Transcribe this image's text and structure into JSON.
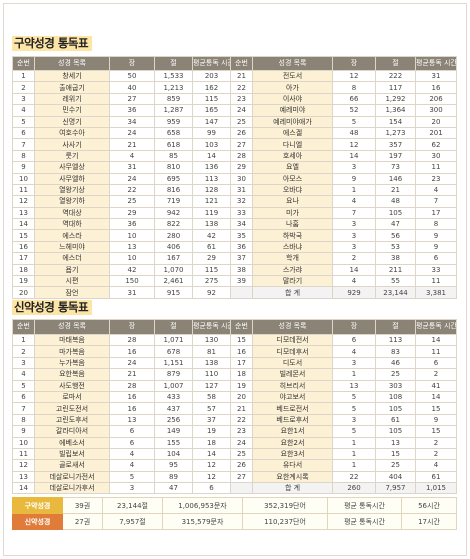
{
  "ot": {
    "title": "구약성경 통독표",
    "headers": [
      "순번",
      "성경 목록",
      "장",
      "절",
      "평균통독 시간/분",
      "순번",
      "성경 목록",
      "장",
      "절",
      "평균통독 시간/분"
    ],
    "rows": [
      [
        1,
        "창세기",
        50,
        "1,533",
        203,
        21,
        "전도서",
        12,
        222,
        31
      ],
      [
        2,
        "출애굽기",
        40,
        "1,213",
        162,
        22,
        "아가",
        8,
        117,
        16
      ],
      [
        3,
        "레위기",
        27,
        859,
        115,
        23,
        "이사야",
        66,
        "1,292",
        206
      ],
      [
        4,
        "민수기",
        36,
        "1,287",
        165,
        24,
        "예레미야",
        52,
        "1,364",
        300
      ],
      [
        5,
        "신명기",
        34,
        959,
        147,
        25,
        "예레미야애가",
        5,
        154,
        20
      ],
      [
        6,
        "여호수아",
        24,
        658,
        99,
        26,
        "에스겔",
        48,
        "1,273",
        201
      ],
      [
        7,
        "사사기",
        21,
        618,
        103,
        27,
        "다니엘",
        12,
        357,
        62
      ],
      [
        8,
        "룻기",
        4,
        85,
        14,
        28,
        "호세아",
        14,
        197,
        30
      ],
      [
        9,
        "사무엘상",
        31,
        810,
        136,
        29,
        "요엘",
        3,
        73,
        11
      ],
      [
        10,
        "사무엘하",
        24,
        695,
        113,
        30,
        "아모스",
        9,
        146,
        23
      ],
      [
        11,
        "열왕기상",
        22,
        816,
        128,
        31,
        "오바댜",
        1,
        21,
        4
      ],
      [
        12,
        "열왕기하",
        25,
        719,
        121,
        32,
        "요나",
        4,
        48,
        7
      ],
      [
        13,
        "역대상",
        29,
        942,
        119,
        33,
        "미가",
        7,
        105,
        17
      ],
      [
        14,
        "역대하",
        36,
        822,
        138,
        34,
        "나훔",
        3,
        47,
        8
      ],
      [
        15,
        "에스라",
        10,
        280,
        42,
        35,
        "하박국",
        3,
        56,
        9
      ],
      [
        16,
        "느헤미야",
        13,
        406,
        61,
        36,
        "스바냐",
        3,
        53,
        9
      ],
      [
        17,
        "에스더",
        10,
        167,
        29,
        37,
        "학개",
        2,
        38,
        6
      ],
      [
        18,
        "욥기",
        42,
        "1,070",
        115,
        38,
        "스가랴",
        14,
        211,
        33
      ],
      [
        19,
        "시편",
        150,
        "2,461",
        275,
        39,
        "말라기",
        4,
        55,
        11
      ],
      [
        20,
        "잠언",
        31,
        915,
        92,
        "",
        "합   계",
        929,
        "23,144",
        "3,381"
      ]
    ]
  },
  "nt": {
    "title": "신약성경 통독표",
    "headers": [
      "순번",
      "성경 목록",
      "장",
      "절",
      "평균통독 시간/분",
      "순번",
      "성경 목록",
      "장",
      "절",
      "평균통독 시간/분"
    ],
    "rows": [
      [
        1,
        "마태복음",
        28,
        "1,071",
        130,
        15,
        "디모데전서",
        6,
        113,
        14
      ],
      [
        2,
        "마가복음",
        16,
        678,
        81,
        16,
        "디모데후서",
        4,
        83,
        11
      ],
      [
        3,
        "누가복음",
        24,
        "1,151",
        138,
        17,
        "디도서",
        3,
        46,
        6
      ],
      [
        4,
        "요한복음",
        21,
        879,
        110,
        18,
        "빌레몬서",
        1,
        25,
        2
      ],
      [
        5,
        "사도행전",
        28,
        "1,007",
        127,
        19,
        "히브리서",
        13,
        303,
        41
      ],
      [
        6,
        "로마서",
        16,
        433,
        58,
        20,
        "야고보서",
        5,
        108,
        14
      ],
      [
        7,
        "고린도전서",
        16,
        437,
        57,
        21,
        "베드로전서",
        5,
        105,
        15
      ],
      [
        8,
        "고린도후서",
        13,
        256,
        37,
        22,
        "베드로후서",
        3,
        61,
        9
      ],
      [
        9,
        "갈라디아서",
        6,
        149,
        19,
        23,
        "요한1서",
        5,
        105,
        15
      ],
      [
        10,
        "에베소서",
        6,
        155,
        18,
        24,
        "요한2서",
        1,
        13,
        2
      ],
      [
        11,
        "빌립보서",
        4,
        104,
        14,
        25,
        "요한3서",
        1,
        15,
        2
      ],
      [
        12,
        "골로새서",
        4,
        95,
        12,
        26,
        "유다서",
        1,
        25,
        4
      ],
      [
        13,
        "데살로니가전서",
        5,
        89,
        12,
        27,
        "요한계시록",
        22,
        404,
        61
      ],
      [
        14,
        "데살로니가후서",
        3,
        47,
        6,
        "",
        "합   계",
        260,
        "7,957",
        "1,015"
      ]
    ]
  },
  "summary": {
    "rows": [
      {
        "label": "구약성경",
        "chapters": "39권",
        "verses": "23,144절",
        "chars": "1,006,953문자",
        "words": "352,319단어",
        "time_label": "평균 통독시간",
        "time": "56시간"
      },
      {
        "label": "신약성경",
        "chapters": "27권",
        "verses": "7,957절",
        "chars": "315,579문자",
        "words": "110,237단어",
        "time_label": "평균 통독시간",
        "time": "17시간"
      }
    ]
  },
  "colors": {
    "header_bg": "#8a8376",
    "name_bg": "#fcf0d5",
    "title_bg": "#fde5a6",
    "ot_label": "#e9b93d",
    "nt_label": "#e07b3a"
  }
}
